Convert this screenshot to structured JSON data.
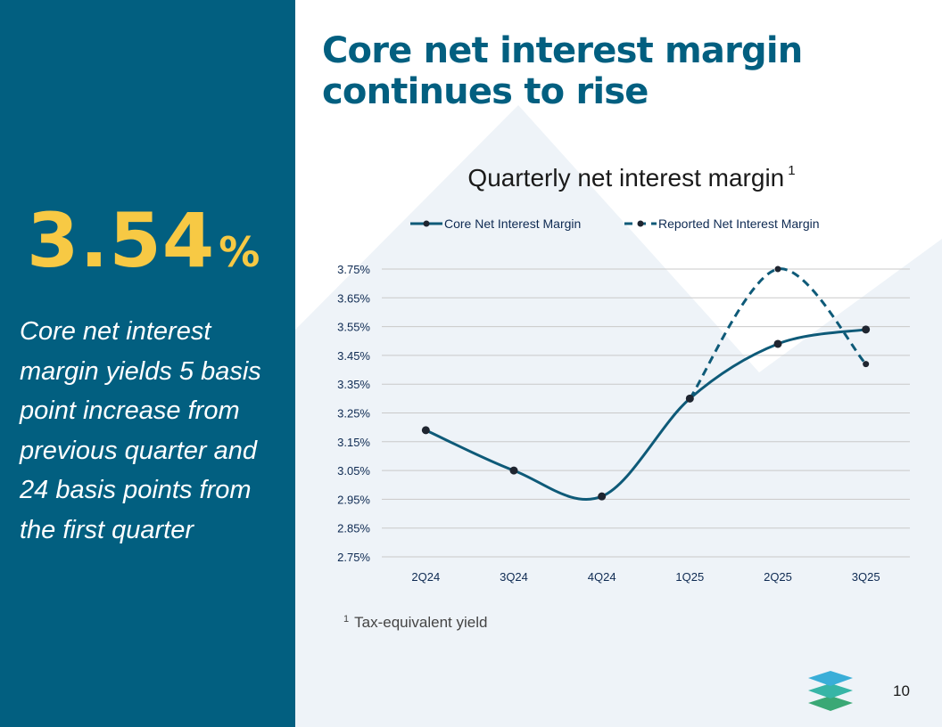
{
  "slide": {
    "title": "Core net interest margin continues to rise",
    "highlight_value": "3.54",
    "highlight_unit": "%",
    "highlight_caption": "Core net interest margin yields 5 basis point increase from previous quarter and 24 basis points from the first quarter",
    "footnote_marker": "1",
    "footnote_text": "Tax-equivalent yield",
    "page_number": "10"
  },
  "chart_data": {
    "type": "line",
    "title": "Quarterly net interest margin",
    "title_superscript": "1",
    "categories": [
      "2Q24",
      "3Q24",
      "4Q24",
      "1Q25",
      "2Q25",
      "3Q25"
    ],
    "series": [
      {
        "name": "Core Net Interest Margin",
        "values": [
          3.19,
          3.05,
          2.96,
          3.3,
          3.49,
          3.54
        ],
        "style": "solid",
        "color": "#0e5a78"
      },
      {
        "name": "Reported Net Interest Margin",
        "values": [
          null,
          null,
          null,
          3.3,
          3.75,
          3.42
        ],
        "style": "dashed",
        "color": "#0e5a78"
      }
    ],
    "y_ticks": [
      "3.75%",
      "3.65%",
      "3.55%",
      "3.45%",
      "3.35%",
      "3.25%",
      "3.15%",
      "3.05%",
      "2.95%",
      "2.85%",
      "2.75%"
    ],
    "ylim": [
      2.75,
      3.75
    ],
    "y_unit": "%",
    "grid": true,
    "legend_position": "top"
  },
  "colors": {
    "sidebar": "#025f80",
    "highlight": "#f7c944",
    "title": "#025f80",
    "series": "#0e5a78"
  }
}
